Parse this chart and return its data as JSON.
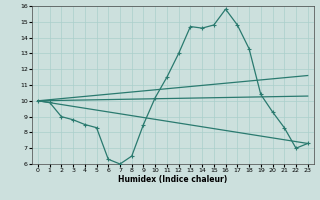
{
  "xlabel": "Humidex (Indice chaleur)",
  "xlim": [
    -0.5,
    23.5
  ],
  "ylim": [
    6,
    16
  ],
  "xticks": [
    0,
    1,
    2,
    3,
    4,
    5,
    6,
    7,
    8,
    9,
    10,
    11,
    12,
    13,
    14,
    15,
    16,
    17,
    18,
    19,
    20,
    21,
    22,
    23
  ],
  "yticks": [
    6,
    7,
    8,
    9,
    10,
    11,
    12,
    13,
    14,
    15,
    16
  ],
  "bg_color": "#cce0dd",
  "line_color": "#2a7a6f",
  "grid_color": "#aacfcb",
  "lines": [
    {
      "x": [
        0,
        1,
        2,
        3,
        4,
        5,
        6,
        7,
        8,
        9,
        10,
        11,
        12,
        13,
        14,
        15,
        16,
        17,
        18,
        19,
        20,
        21,
        22,
        23
      ],
      "y": [
        10,
        9.9,
        9.0,
        8.8,
        8.5,
        8.3,
        6.3,
        6.0,
        6.5,
        8.5,
        10.2,
        11.5,
        13.0,
        14.7,
        14.6,
        14.8,
        15.8,
        14.8,
        13.3,
        10.4,
        9.3,
        8.3,
        7.0,
        7.3
      ],
      "marker": true
    },
    {
      "x": [
        0,
        23
      ],
      "y": [
        10.0,
        11.6
      ],
      "marker": false
    },
    {
      "x": [
        0,
        23
      ],
      "y": [
        10.0,
        10.3
      ],
      "marker": false
    },
    {
      "x": [
        0,
        23
      ],
      "y": [
        10.0,
        7.3
      ],
      "marker": false
    }
  ]
}
